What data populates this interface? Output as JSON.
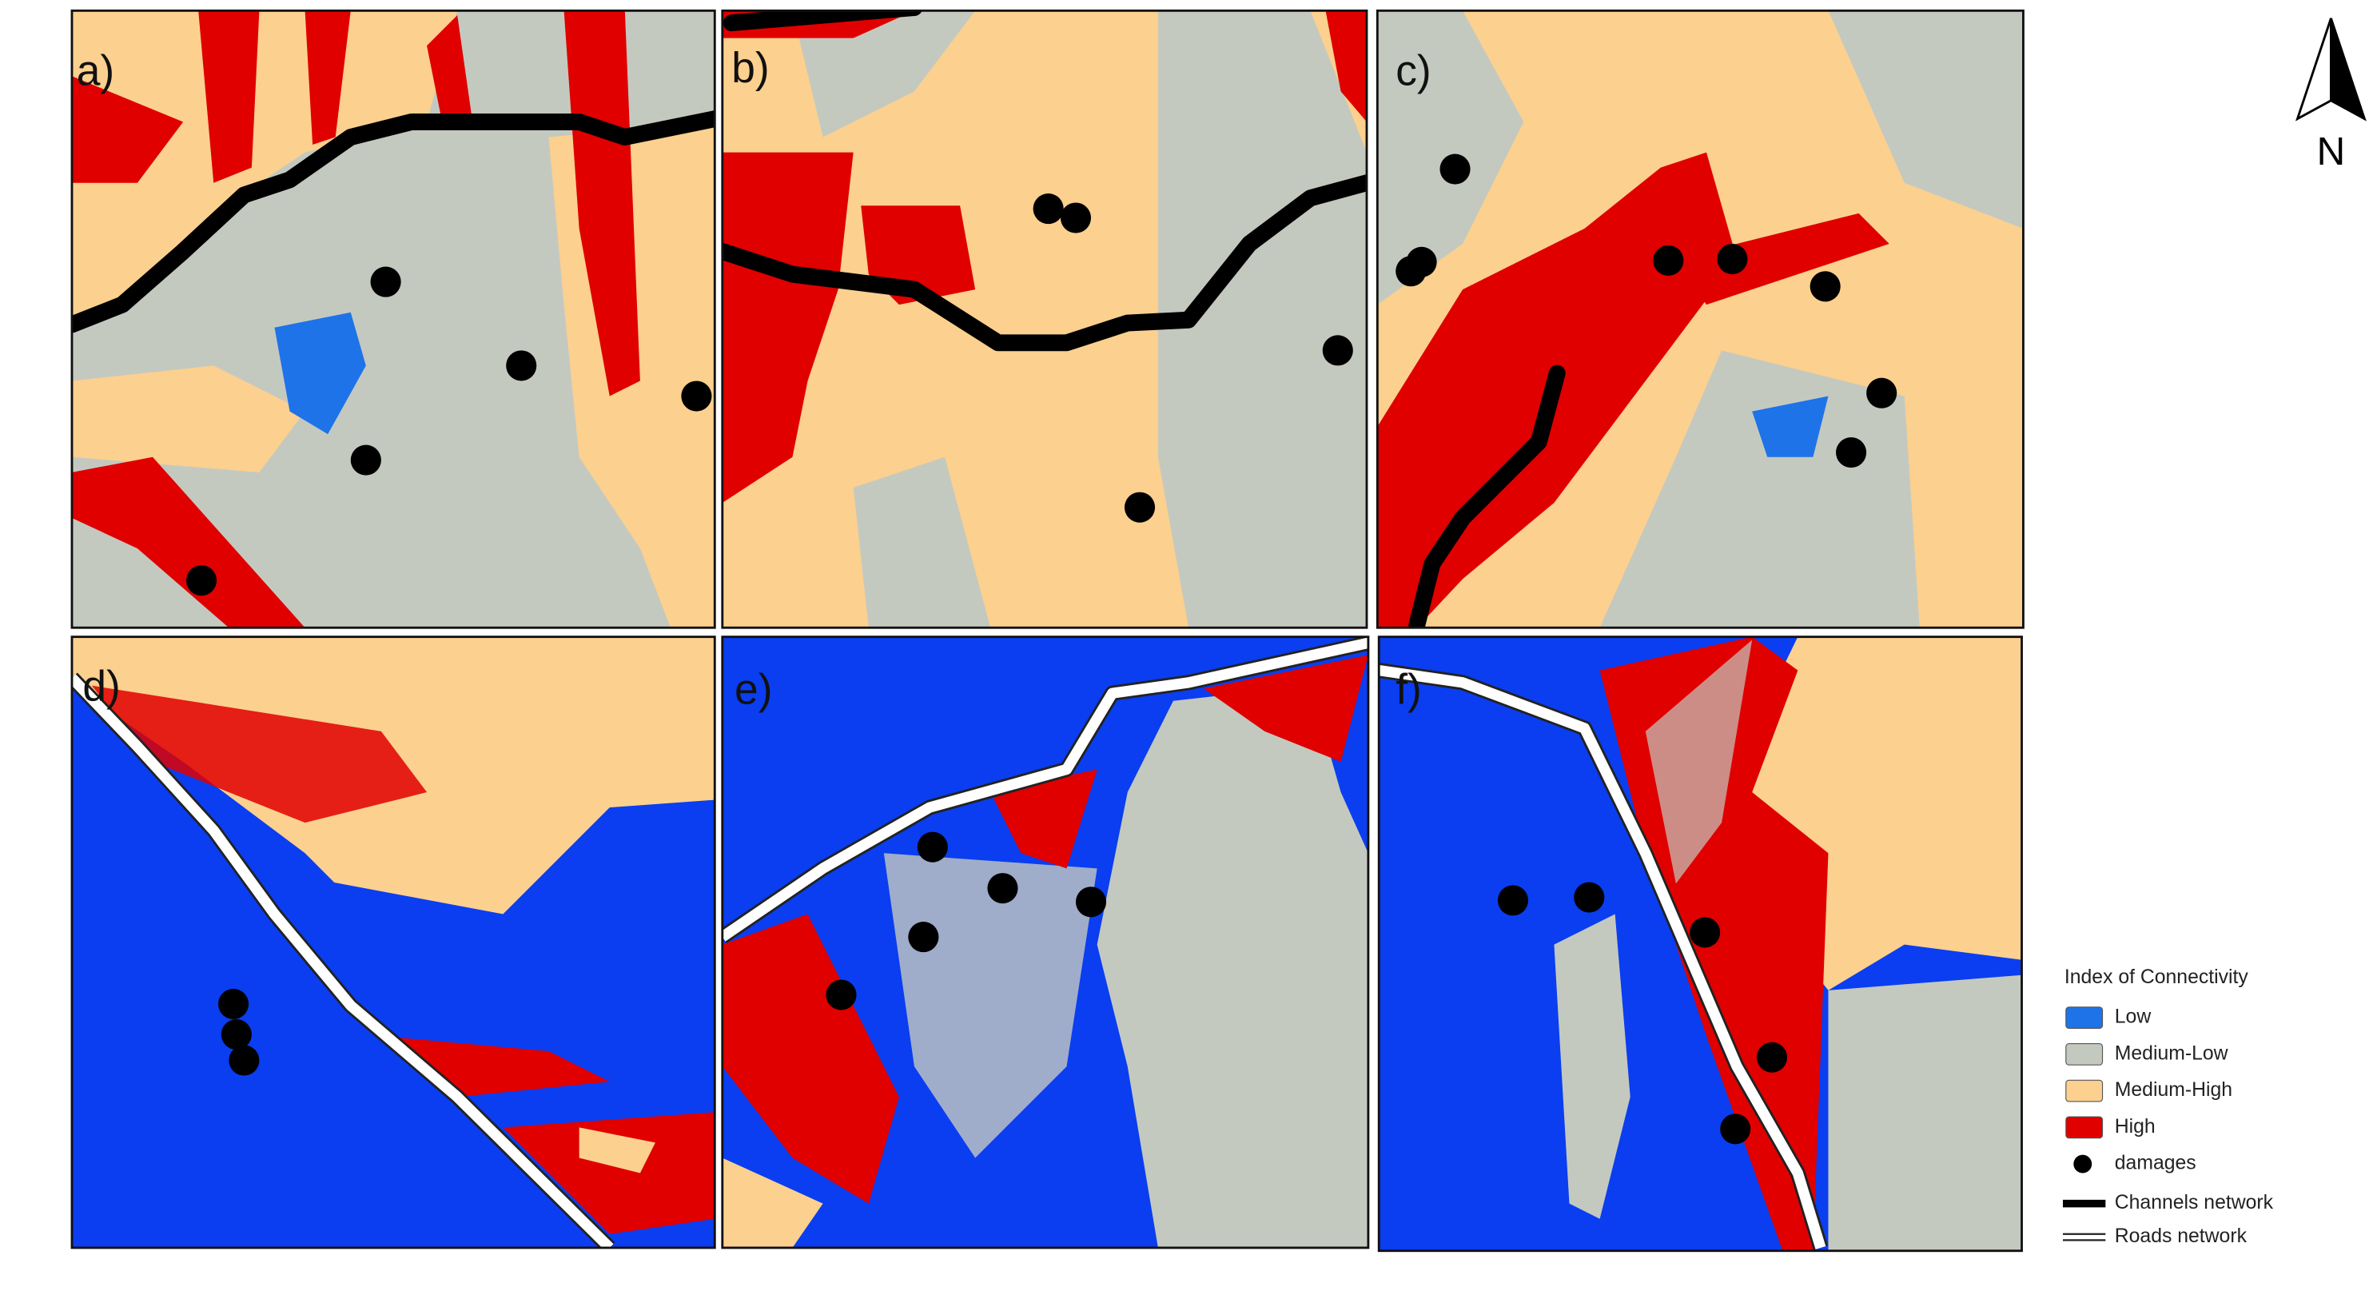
{
  "panels": [
    {
      "label": "a)"
    },
    {
      "label": "b)"
    },
    {
      "label": "c)"
    },
    {
      "label": "d)"
    },
    {
      "label": "e)"
    },
    {
      "label": "f)"
    }
  ],
  "north": "N",
  "legend": {
    "title": "Index of Connectivity",
    "items": [
      {
        "label": "Low",
        "color": "#1e73e8"
      },
      {
        "label": "Medium-Low",
        "color": "#c4c9c0"
      },
      {
        "label": "Medium-High",
        "color": "#fcd08e"
      },
      {
        "label": "High",
        "color": "#e00000"
      }
    ],
    "damages": "damages",
    "channels": "Channels network",
    "roads": "Roads network"
  }
}
